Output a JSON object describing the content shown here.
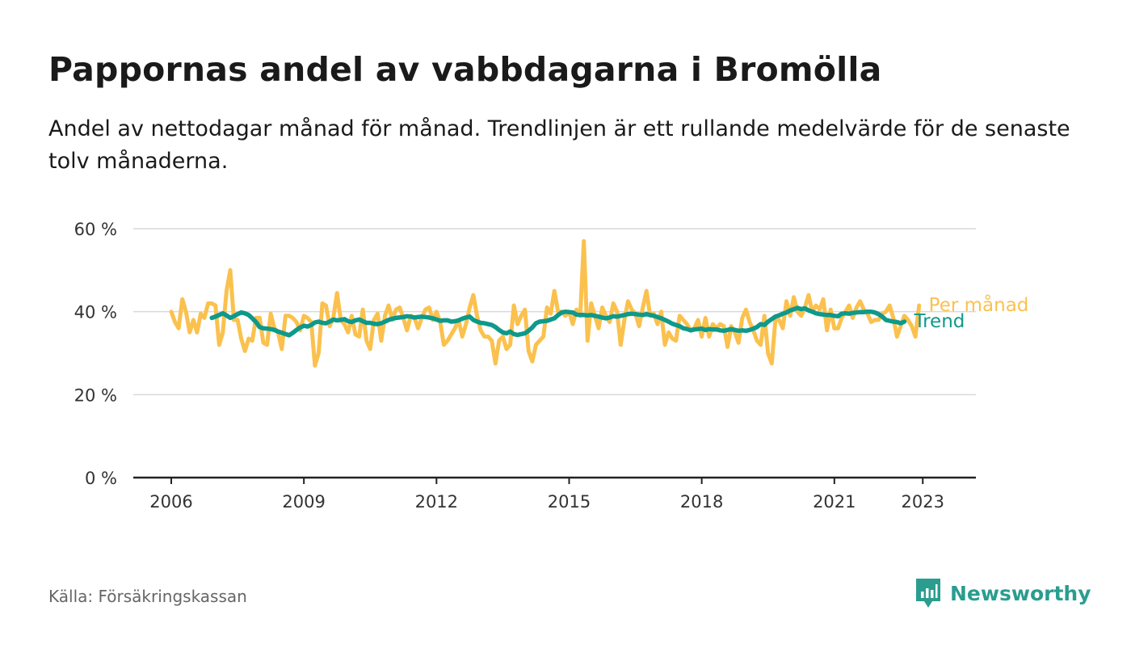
{
  "title": "Pappornas andel av vabbdagarna i Bromölla",
  "subtitle": "Andel av nettodagar månad för månad. Trendlinjen är ett rullande medelvärde för de senaste tolv månaderna.",
  "source": "Källa: Försäkringskassan",
  "brand": {
    "name": "Newsworthy",
    "icon": "newsworthy-logo-icon",
    "color": "#2a9d8f"
  },
  "chart_data": {
    "type": "line",
    "title": "Pappornas andel av vabbdagarna i Bromölla",
    "xlabel": "",
    "ylabel": "",
    "x_start": "2006-01",
    "x_ticks": [
      "2006",
      "2009",
      "2012",
      "2015",
      "2018",
      "2021",
      "2023"
    ],
    "y_ticks": [
      "0 %",
      "20 %",
      "40 %",
      "60 %"
    ],
    "ylim": [
      0,
      60
    ],
    "grid": true,
    "legend": "inline-right",
    "series": [
      {
        "name": "Per månad",
        "color": "#fbc14e",
        "values": [
          40,
          37.5,
          36,
          43,
          40,
          35,
          38,
          35,
          39.5,
          38.5,
          42,
          42,
          41.5,
          32,
          35,
          45,
          50,
          38,
          38,
          33.5,
          30.5,
          33.5,
          33,
          38.5,
          38.5,
          32.5,
          32,
          39.5,
          36,
          35,
          31,
          39,
          39,
          38.5,
          37.5,
          35.5,
          39,
          38.5,
          37.5,
          27,
          30,
          42,
          41.5,
          36.5,
          38.5,
          44.5,
          38,
          37,
          35,
          39,
          34.5,
          34,
          40.5,
          33,
          31,
          38,
          39.5,
          33,
          39,
          41.5,
          38,
          40.5,
          41,
          38.5,
          35.5,
          39,
          38.5,
          36,
          38.5,
          40.5,
          41,
          38,
          40,
          37.5,
          32,
          33,
          34.5,
          36,
          38,
          34,
          37,
          41,
          44,
          39,
          35.5,
          34,
          34,
          33,
          27.5,
          33,
          34,
          31,
          32,
          41.5,
          37,
          39,
          40.5,
          30.5,
          28,
          32,
          33,
          34,
          41,
          39.5,
          45,
          40,
          40,
          39,
          40,
          37,
          40.5,
          39,
          57,
          33,
          42,
          39,
          36,
          41,
          39,
          37.5,
          42,
          40,
          32,
          38,
          42.5,
          40.5,
          39.5,
          36.5,
          41,
          45,
          39,
          39.5,
          37,
          40,
          32,
          35,
          33.5,
          33,
          39,
          38,
          37,
          35.5,
          36,
          38,
          34,
          38.5,
          34,
          37,
          36,
          37,
          36.5,
          31.5,
          36.5,
          35,
          32.5,
          38.5,
          40.5,
          37.5,
          35.5,
          33,
          32,
          39,
          30,
          27.5,
          38,
          38,
          36,
          42.5,
          39,
          43.5,
          40,
          39,
          41,
          44,
          40,
          41.5,
          40.5,
          43,
          35.5,
          40.5,
          36,
          36,
          38.5,
          40,
          41.5,
          38.5,
          41,
          42.5,
          40.5,
          39.5,
          37.5,
          38,
          38,
          39.5,
          40,
          41.5,
          38.5,
          34,
          36.5,
          39,
          38,
          36.5,
          34,
          41.5
        ],
        "label_visible": true
      },
      {
        "name": "Trend",
        "color": "#0e998a",
        "start_index": 11,
        "values": [
          38.5,
          38.8,
          39.2,
          39.6,
          39.1,
          38.5,
          38.9,
          39.4,
          39.8,
          39.6,
          39.2,
          38.4,
          37.5,
          36.3,
          36,
          35.9,
          35.8,
          35.6,
          35.2,
          34.9,
          34.6,
          34.3,
          34.9,
          35.6,
          36.2,
          36.6,
          36.4,
          36.8,
          37.4,
          37.6,
          37.3,
          37.2,
          37.6,
          38.1,
          37.9,
          38,
          38.2,
          37.7,
          37.5,
          37.9,
          38.1,
          37.7,
          37.3,
          37.3,
          37.1,
          37,
          37.2,
          37.6,
          38,
          38.3,
          38.5,
          38.6,
          38.7,
          38.9,
          38.8,
          38.6,
          38.7,
          38.8,
          38.7,
          38.6,
          38.4,
          38.1,
          37.8,
          37.9,
          37.9,
          37.6,
          37.7,
          37.9,
          38.3,
          38.6,
          38.8,
          38,
          37.6,
          37.3,
          37.2,
          37,
          36.8,
          36.3,
          35.6,
          35,
          34.8,
          35.2,
          34.6,
          34.4,
          34.6,
          34.8,
          35.4,
          36.2,
          37.2,
          37.6,
          37.7,
          37.8,
          38.1,
          38.4,
          39.2,
          39.8,
          40,
          39.9,
          39.8,
          39.3,
          39.2,
          39.2,
          39.1,
          39.2,
          39,
          38.8,
          38.6,
          38.4,
          38.6,
          38.9,
          38.8,
          39,
          39.2,
          39.4,
          39.5,
          39.4,
          39.3,
          39.2,
          39.4,
          39.2,
          39,
          38.7,
          38.4,
          38,
          37.6,
          37.1,
          36.8,
          36.5,
          36,
          35.8,
          35.5,
          35.7,
          35.8,
          35.9,
          35.6,
          35.8,
          35.7,
          35.7,
          35.5,
          35.4,
          35.6,
          35.8,
          35.6,
          35.4,
          35.5,
          35.4,
          35.6,
          35.9,
          36.3,
          37,
          36.8,
          37.6,
          38.2,
          38.8,
          39.1,
          39.5,
          39.8,
          40.3,
          40.6,
          40.9,
          40.6,
          40.8,
          40.3,
          40,
          39.6,
          39.4,
          39.3,
          39.2,
          39.2,
          39,
          38.9,
          39.5,
          39.6,
          39.5,
          39.7,
          39.8,
          39.9,
          39.9,
          40,
          40,
          39.8,
          39.4,
          38.8,
          38,
          37.8,
          37.6,
          37.5,
          37.2,
          37.6
        ]
      }
    ]
  }
}
